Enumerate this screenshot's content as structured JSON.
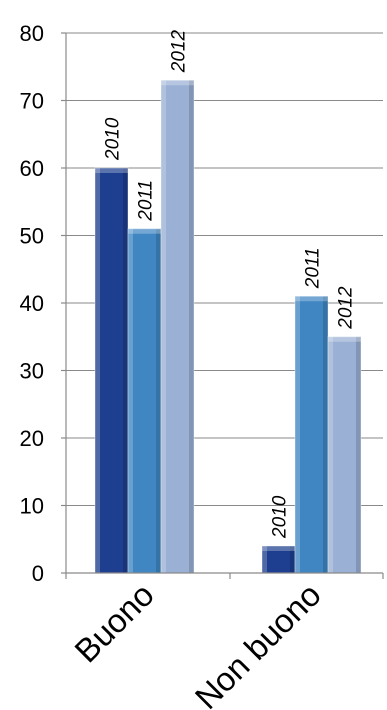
{
  "chart_data": {
    "type": "bar",
    "categories": [
      "Buono",
      "Non buono"
    ],
    "series": [
      {
        "label": "2010",
        "values": [
          60,
          4
        ],
        "color": "#1e3f8f"
      },
      {
        "label": "2011",
        "values": [
          51,
          41
        ],
        "color": "#3f86c2"
      },
      {
        "label": "2012",
        "values": [
          73,
          35
        ],
        "color": "#9ab0d4"
      }
    ],
    "ylim": [
      0,
      80
    ],
    "yticks": [
      0,
      10,
      20,
      30,
      40,
      50,
      60,
      70,
      80
    ],
    "grid": true,
    "legend": "none",
    "data_labels": "series name above each bar, rotated vertical, italic"
  }
}
